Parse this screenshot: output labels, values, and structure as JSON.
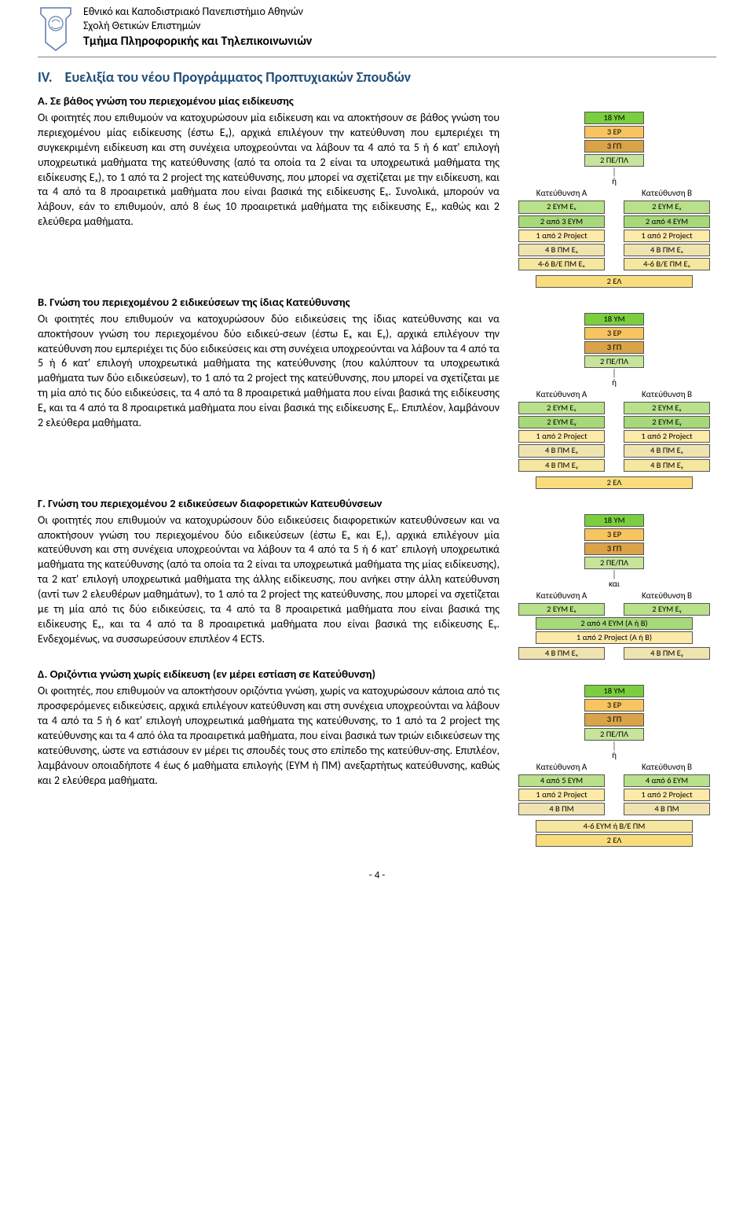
{
  "colors": {
    "accent": "#1f4e79",
    "rule": "#808080",
    "ym": "#7bcf3e",
    "ep": "#f7c45f",
    "gp": "#d9a34a",
    "pepa": "#c6e49a",
    "direction_head": "#fde9a8",
    "eym": "#b9e08a",
    "eym2": "#a7d97a",
    "proj": "#fde9a8",
    "pm": "#efe4b0",
    "pm2": "#f5e6a0",
    "el": "#f9dd7d"
  },
  "header": {
    "uni": "Εθνικό και Καποδιστριακό Πανεπιστήμιο Αθηνών",
    "school": "Σχολή Θετικών Επιστημών",
    "dept": "Τμήμα Πληροφορικής και Τηλεπικοινωνιών"
  },
  "section": {
    "num": "IV.",
    "title": "Ευελιξία του νέου Προγράμματος Προπτυχιακών Σπουδών"
  },
  "A": {
    "title": "Α. Σε βάθος γνώση του περιεχομένου μίας ειδίκευσης",
    "body": "Οι φοιτητές που επιθυμούν να κατοχυρώσουν μία ειδίκευση και να αποκτήσουν σε βάθος γνώση του περιεχομένου μίας ειδίκευσης (έστω Eₓ), αρχικά επιλέγουν την κατεύθυνση που εμπεριέχει τη συγκεκριμένη ειδίκευση και στη συνέχεια υποχρεούνται να λάβουν τα 4 από τα 5 ή 6 κατ' επιλογή υποχρεωτικά μαθήματα της κατεύθυνσης (από τα οποία τα 2 είναι τα υποχρεωτικά μαθήματα της ειδίκευσης Eₓ), το 1 από τα 2 project της κατεύθυνσης, που μπορεί να σχετίζεται με την ειδίκευση, και τα 4 από τα 8 προαιρετικά μαθήματα που είναι βασικά της ειδίκευσης Eₓ. Συνολικά, μπορούν να λάβουν, εάν το επιθυμούν, από 8 έως 10 προαιρετικά μαθήματα της ειδίκευσης Eₓ, καθώς και 2 ελεύθερα μαθήματα."
  },
  "B": {
    "title": "Β. Γνώση του περιεχομένου 2 ειδικεύσεων της ίδιας Κατεύθυνσης",
    "body": "Οι φοιτητές που επιθυμούν να κατοχυρώσουν δύο ειδικεύσεις της ίδιας κατεύθυνσης και να αποκτήσουν γνώση του περιεχομένου δύο ειδικεύ-σεων (έστω Eₓ και Eᵧ), αρχικά επιλέγουν την κατεύθυνση που εμπεριέχει τις δύο ειδικεύσεις και στη συνέχεια υποχρεούνται να λάβουν τα 4 από τα 5 ή 6 κατ' επιλογή υποχρεωτικά μαθήματα της κατεύθυνσης (που καλύπτουν τα υποχρεωτικά μαθήματα των δύο ειδικεύσεων), το 1 από τα 2 project της κατεύθυνσης, που μπορεί να σχετίζεται με τη μία από τις δύο ειδικεύσεις, τα 4 από τα 8 προαιρετικά μαθήματα που είναι βασικά της ειδίκευσης Eₓ και τα 4 από τα 8 προαιρετικά μαθήματα που είναι βασικά της ειδίκευσης Eᵧ. Επιπλέον, λαμβάνουν 2 ελεύθερα μαθήματα."
  },
  "C": {
    "title": "Γ. Γνώση του περιεχομένου 2 ειδικεύσεων διαφορετικών Κατευθύνσεων",
    "body": "Οι φοιτητές που επιθυμούν να κατοχυρώσουν δύο ειδικεύσεις διαφορετικών κατευθύνσεων και να αποκτήσουν γνώση του περιεχομένου δύο ειδικεύσεων (έστω Eₓ και Eᵧ), αρχικά επιλέγουν μία κατεύθυνση και στη συνέχεια υποχρεούνται να λάβουν τα 4 από τα 5 ή 6 κατ' επιλογή υποχρεωτικά μαθήματα της κατεύθυνσης (από τα οποία τα 2 είναι τα υποχρεωτικά μαθήματα της μίας ειδίκευσης), τα 2 κατ' επιλογή υποχρεωτικά μαθήματα της άλλης ειδίκευσης, που ανήκει στην άλλη κατεύθυνση (αντί των 2 ελευθέρων μαθημάτων), το 1 από τα 2 project της κατεύθυνσης, που μπορεί να σχετίζεται με τη μία από τις δύο ειδικεύσεις, τα 4 από τα 8 προαιρετικά μαθήματα που είναι βασικά της ειδίκευσης Eₓ, και τα 4 από τα 8 προαιρετικά μαθήματα που είναι βασικά της ειδίκευσης Eᵧ. Ενδεχομένως, να συσσωρεύσουν επιπλέον 4 ECTS."
  },
  "D": {
    "title": "Δ. Οριζόντια γνώση χωρίς ειδίκευση (εν μέρει εστίαση σε Κατεύθυνση)",
    "body": "Οι φοιτητές, που επιθυμούν να αποκτήσουν οριζόντια γνώση, χωρίς να κατοχυρώσουν κάποια από τις προσφερόμενες ειδικεύσεις, αρχικά επιλέγουν κατεύθυνση και στη συνέχεια υποχρεούνται να λάβουν τα 4 από τα 5 ή 6 κατ' επιλογή υποχρεωτικά μαθήματα της κατεύθυνσης, το 1 από τα 2 project της κατεύθυνσης και τα 4 από όλα τα προαιρετικά μαθήματα, που είναι βασικά των τριών ειδικεύσεων της κατεύθυνσης, ώστε να εστιάσουν εν μέρει τις σπουδές τους στο επίπεδο της κατεύθυν-σης. Επιπλέον, λαμβάνουν οποιαδήποτε 4 έως 6 μαθήματα επιλογής (ΕΥΜ ή ΠΜ) ανεξαρτήτως κατεύθυνσης, καθώς και 2 ελεύθερα μαθήματα."
  },
  "diagram": {
    "top": {
      "ym": "18 ΥΜ",
      "ep": "3 ΕΡ",
      "gp": "3 ΓΠ",
      "pepa": "2 ΠΕ/ΠΛ"
    },
    "or": "ή",
    "and": "και",
    "headA": "Κατεύθυνση Α",
    "headB": "Κατεύθυνση Β",
    "A": {
      "colA": [
        "2 ΕΥΜ Eₓ",
        "2 από 3 ΕΥΜ",
        "1 από 2 Project",
        "4 Β ΠΜ Eₓ",
        "4-6 Β/Ε ΠΜ Eₓ"
      ],
      "colB": [
        "2 ΕΥΜ Eₓ",
        "2 από 4 ΕΥΜ",
        "1 από 2 Project",
        "4 Β ΠΜ Eₓ",
        "4-6 Β/Ε ΠΜ Eₓ"
      ],
      "el": "2 ΕΛ"
    },
    "B": {
      "colA": [
        "2 ΕΥΜ Eₓ",
        "2 ΕΥΜ Eᵧ",
        "1 από 2 Project",
        "4 Β ΠΜ Eₓ",
        "4 Β ΠΜ Eᵧ"
      ],
      "colB": [
        "2 ΕΥΜ Eₓ",
        "2 ΕΥΜ Eᵧ",
        "1 από 2 Project",
        "4 Β ΠΜ Eₓ",
        "4 Β ΠΜ Eᵧ"
      ],
      "el": "2 ΕΛ"
    },
    "C": {
      "colA": [
        "2 ΕΥΜ Eₓ"
      ],
      "colB": [
        "2 ΕΥΜ Eᵧ"
      ],
      "mid": [
        "2 από 4 ΕΥΜ (Α ή Β)",
        "1 από 2 Project (Α ή Β)"
      ],
      "endA": "4 Β ΠΜ Eₓ",
      "endB": "4 Β ΠΜ Eᵧ"
    },
    "D": {
      "colA": [
        "4 από 5 ΕΥΜ",
        "1 από 2 Project",
        "4 Β ΠΜ"
      ],
      "colB": [
        "4 από 6 ΕΥΜ",
        "1 από 2 Project",
        "4 Β ΠΜ"
      ],
      "free": "4-6 ΕΥΜ ή Β/Ε ΠΜ",
      "el": "2 ΕΛ"
    }
  },
  "footer": "- 4 -"
}
